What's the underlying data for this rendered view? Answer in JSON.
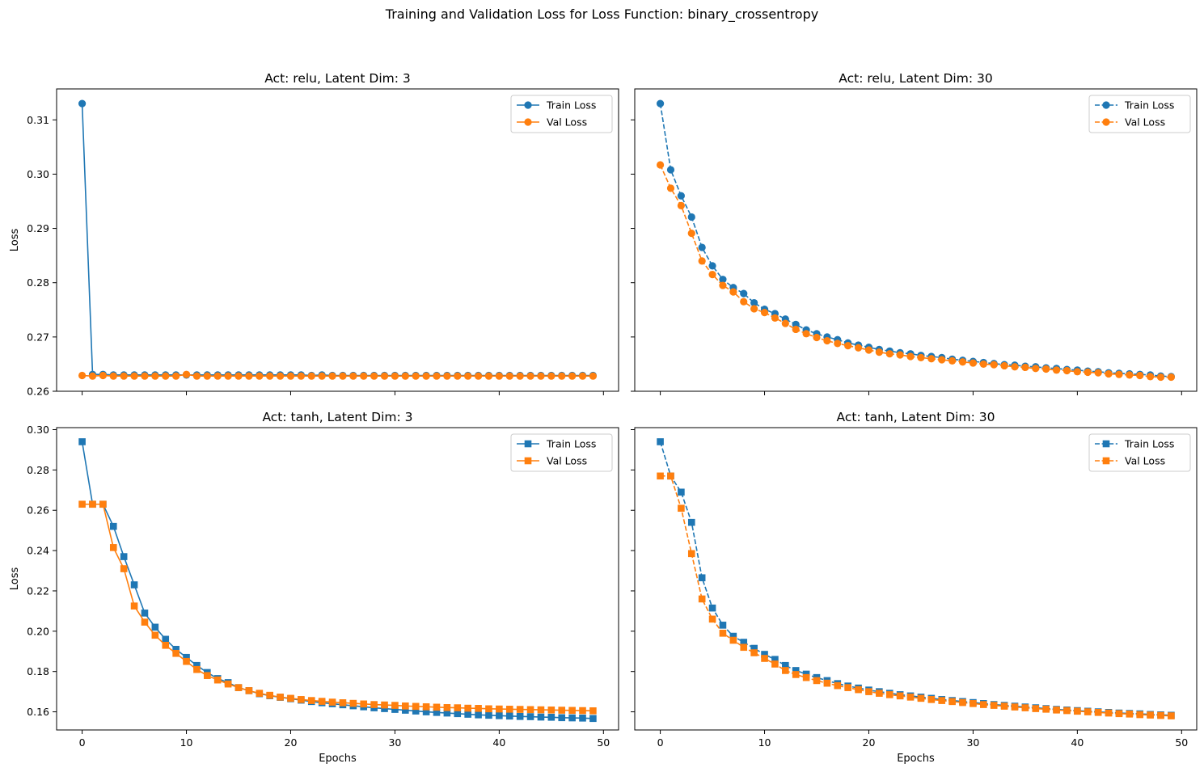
{
  "suptitle": "Training and Validation Loss for Loss Function: binary_crossentropy",
  "colors": {
    "train": "#1f77b4",
    "val": "#ff7f0e"
  },
  "chart_data": [
    {
      "type": "line",
      "title": "Act: relu, Latent Dim: 3",
      "xlabel": "",
      "ylabel": "Loss",
      "xlim": [
        -2.45,
        51.45
      ],
      "ylim": [
        0.26,
        0.3157
      ],
      "xticks": [
        0,
        10,
        20,
        30,
        40,
        50
      ],
      "yticks": [
        0.26,
        0.27,
        0.28,
        0.29,
        0.3,
        0.31
      ],
      "show_xticklabels": false,
      "show_yticklabels": true,
      "marker": "circle",
      "linestyle": "solid",
      "legend": "top-right",
      "x": [
        0,
        1,
        2,
        3,
        4,
        5,
        6,
        7,
        8,
        9,
        10,
        11,
        12,
        13,
        14,
        15,
        16,
        17,
        18,
        19,
        20,
        21,
        22,
        23,
        24,
        25,
        26,
        27,
        28,
        29,
        30,
        31,
        32,
        33,
        34,
        35,
        36,
        37,
        38,
        39,
        40,
        41,
        42,
        43,
        44,
        45,
        46,
        47,
        48,
        49
      ],
      "series": [
        {
          "name": "Train Loss",
          "values": [
            0.313,
            0.2631,
            0.2631,
            0.263,
            0.263,
            0.263,
            0.263,
            0.263,
            0.263,
            0.263,
            0.263,
            0.263,
            0.263,
            0.263,
            0.263,
            0.263,
            0.263,
            0.263,
            0.263,
            0.263,
            0.263,
            0.263,
            0.2629,
            0.263,
            0.2629,
            0.2629,
            0.2629,
            0.2629,
            0.2629,
            0.2629,
            0.2629,
            0.2629,
            0.2629,
            0.2629,
            0.2629,
            0.2629,
            0.2629,
            0.2629,
            0.2629,
            0.2629,
            0.2629,
            0.2629,
            0.2629,
            0.2629,
            0.2629,
            0.2629,
            0.2629,
            0.2629,
            0.2629,
            0.2629
          ]
        },
        {
          "name": "Val Loss",
          "values": [
            0.2629,
            0.2628,
            0.2629,
            0.2628,
            0.2628,
            0.2628,
            0.2628,
            0.2628,
            0.2628,
            0.2628,
            0.2631,
            0.2628,
            0.2628,
            0.2628,
            0.2628,
            0.2628,
            0.2628,
            0.2628,
            0.2628,
            0.2628,
            0.2628,
            0.2628,
            0.2628,
            0.2628,
            0.2628,
            0.2628,
            0.2628,
            0.2628,
            0.2628,
            0.2628,
            0.2628,
            0.2628,
            0.2628,
            0.2628,
            0.2628,
            0.2628,
            0.2628,
            0.2628,
            0.2628,
            0.2628,
            0.2628,
            0.2628,
            0.2628,
            0.2628,
            0.2628,
            0.2628,
            0.2628,
            0.2628,
            0.2628,
            0.2628
          ]
        }
      ]
    },
    {
      "type": "line",
      "title": "Act: relu, Latent Dim: 30",
      "xlabel": "",
      "ylabel": "",
      "xlim": [
        -2.45,
        51.45
      ],
      "ylim": [
        0.26,
        0.3157
      ],
      "xticks": [
        0,
        10,
        20,
        30,
        40,
        50
      ],
      "yticks": [
        0.26,
        0.27,
        0.28,
        0.29,
        0.3,
        0.31
      ],
      "show_xticklabels": false,
      "show_yticklabels": false,
      "marker": "circle",
      "linestyle": "dashed",
      "legend": "top-right",
      "x": [
        0,
        1,
        2,
        3,
        4,
        5,
        6,
        7,
        8,
        9,
        10,
        11,
        12,
        13,
        14,
        15,
        16,
        17,
        18,
        19,
        20,
        21,
        22,
        23,
        24,
        25,
        26,
        27,
        28,
        29,
        30,
        31,
        32,
        33,
        34,
        35,
        36,
        37,
        38,
        39,
        40,
        41,
        42,
        43,
        44,
        45,
        46,
        47,
        48,
        49
      ],
      "series": [
        {
          "name": "Train Loss",
          "values": [
            0.313,
            0.3008,
            0.296,
            0.2921,
            0.2865,
            0.2831,
            0.2806,
            0.2791,
            0.278,
            0.2763,
            0.2751,
            0.2743,
            0.2733,
            0.2723,
            0.2713,
            0.2706,
            0.27,
            0.2695,
            0.2689,
            0.2685,
            0.2681,
            0.2677,
            0.2674,
            0.2671,
            0.2669,
            0.2666,
            0.2664,
            0.2662,
            0.2659,
            0.2657,
            0.2655,
            0.2653,
            0.2651,
            0.2649,
            0.2648,
            0.2646,
            0.2645,
            0.2643,
            0.2642,
            0.264,
            0.2639,
            0.2637,
            0.2636,
            0.2634,
            0.2633,
            0.2632,
            0.2631,
            0.263,
            0.2628,
            0.2627
          ]
        },
        {
          "name": "Val Loss",
          "values": [
            0.3017,
            0.2974,
            0.2942,
            0.2891,
            0.284,
            0.2815,
            0.2795,
            0.2783,
            0.2765,
            0.2752,
            0.2745,
            0.2735,
            0.2725,
            0.2714,
            0.2706,
            0.2699,
            0.2693,
            0.2688,
            0.2684,
            0.268,
            0.2676,
            0.2672,
            0.2669,
            0.2667,
            0.2664,
            0.2662,
            0.266,
            0.2658,
            0.2656,
            0.2654,
            0.2652,
            0.265,
            0.2649,
            0.2647,
            0.2645,
            0.2644,
            0.2642,
            0.2641,
            0.2639,
            0.2638,
            0.2636,
            0.2635,
            0.2634,
            0.2632,
            0.2631,
            0.263,
            0.2629,
            0.2627,
            0.2626,
            0.2626
          ]
        }
      ]
    },
    {
      "type": "line",
      "title": "Act: tanh, Latent Dim: 3",
      "xlabel": "Epochs",
      "ylabel": "Loss",
      "xlim": [
        -2.45,
        51.45
      ],
      "ylim": [
        0.151,
        0.301
      ],
      "xticks": [
        0,
        10,
        20,
        30,
        40,
        50
      ],
      "yticks": [
        0.16,
        0.18,
        0.2,
        0.22,
        0.24,
        0.26,
        0.28,
        0.3
      ],
      "show_xticklabels": true,
      "show_yticklabels": true,
      "marker": "square",
      "linestyle": "solid",
      "legend": "top-right",
      "x": [
        0,
        1,
        2,
        3,
        4,
        5,
        6,
        7,
        8,
        9,
        10,
        11,
        12,
        13,
        14,
        15,
        16,
        17,
        18,
        19,
        20,
        21,
        22,
        23,
        24,
        25,
        26,
        27,
        28,
        29,
        30,
        31,
        32,
        33,
        34,
        35,
        36,
        37,
        38,
        39,
        40,
        41,
        42,
        43,
        44,
        45,
        46,
        47,
        48,
        49
      ],
      "series": [
        {
          "name": "Train Loss",
          "values": [
            0.294,
            0.263,
            0.263,
            0.252,
            0.237,
            0.223,
            0.209,
            0.202,
            0.196,
            0.191,
            0.187,
            0.183,
            0.1795,
            0.1765,
            0.1745,
            0.172,
            0.1705,
            0.169,
            0.168,
            0.1672,
            0.1665,
            0.1658,
            0.1651,
            0.1645,
            0.164,
            0.1635,
            0.163,
            0.1625,
            0.162,
            0.1616,
            0.1612,
            0.1608,
            0.1604,
            0.16,
            0.1597,
            0.1594,
            0.1591,
            0.1588,
            0.1585,
            0.1583,
            0.1581,
            0.1579,
            0.1577,
            0.1576,
            0.1574,
            0.1573,
            0.1571,
            0.157,
            0.1569,
            0.1567
          ]
        },
        {
          "name": "Val Loss",
          "values": [
            0.263,
            0.263,
            0.263,
            0.2415,
            0.231,
            0.2125,
            0.2045,
            0.198,
            0.193,
            0.189,
            0.185,
            0.181,
            0.178,
            0.1758,
            0.1738,
            0.172,
            0.1705,
            0.1692,
            0.1682,
            0.1673,
            0.1667,
            0.1661,
            0.1656,
            0.1652,
            0.1648,
            0.1645,
            0.1642,
            0.1639,
            0.1636,
            0.1634,
            0.1632,
            0.1629,
            0.1627,
            0.1625,
            0.1623,
            0.1621,
            0.162,
            0.1618,
            0.1617,
            0.1615,
            0.1614,
            0.1613,
            0.1612,
            0.1611,
            0.161,
            0.1609,
            0.1608,
            0.1607,
            0.1606,
            0.1605
          ]
        }
      ]
    },
    {
      "type": "line",
      "title": "Act: tanh, Latent Dim: 30",
      "xlabel": "Epochs",
      "ylabel": "",
      "xlim": [
        -2.45,
        51.45
      ],
      "ylim": [
        0.151,
        0.301
      ],
      "xticks": [
        0,
        10,
        20,
        30,
        40,
        50
      ],
      "yticks": [
        0.16,
        0.18,
        0.2,
        0.22,
        0.24,
        0.26,
        0.28,
        0.3
      ],
      "show_xticklabels": true,
      "show_yticklabels": false,
      "marker": "square",
      "linestyle": "dashed",
      "legend": "top-right",
      "x": [
        0,
        1,
        2,
        3,
        4,
        5,
        6,
        7,
        8,
        9,
        10,
        11,
        12,
        13,
        14,
        15,
        16,
        17,
        18,
        19,
        20,
        21,
        22,
        23,
        24,
        25,
        26,
        27,
        28,
        29,
        30,
        31,
        32,
        33,
        34,
        35,
        36,
        37,
        38,
        39,
        40,
        41,
        42,
        43,
        44,
        45,
        46,
        47,
        48,
        49
      ],
      "series": [
        {
          "name": "Train Loss",
          "values": [
            0.294,
            0.277,
            0.269,
            0.254,
            0.2265,
            0.2115,
            0.203,
            0.1975,
            0.1945,
            0.1915,
            0.1885,
            0.186,
            0.183,
            0.1805,
            0.1787,
            0.177,
            0.1755,
            0.174,
            0.1728,
            0.1718,
            0.1708,
            0.17,
            0.1692,
            0.1685,
            0.1679,
            0.1673,
            0.1667,
            0.1661,
            0.1656,
            0.1651,
            0.1646,
            0.1641,
            0.1636,
            0.1632,
            0.1628,
            0.1624,
            0.162,
            0.1616,
            0.1612,
            0.1609,
            0.1606,
            0.1603,
            0.16,
            0.1597,
            0.1594,
            0.1592,
            0.159,
            0.1587,
            0.1585,
            0.1583
          ]
        },
        {
          "name": "Val Loss",
          "values": [
            0.277,
            0.277,
            0.261,
            0.2385,
            0.216,
            0.206,
            0.199,
            0.1955,
            0.192,
            0.1893,
            0.1865,
            0.1837,
            0.1805,
            0.1785,
            0.177,
            0.1755,
            0.1742,
            0.173,
            0.172,
            0.171,
            0.17,
            0.1692,
            0.1685,
            0.1679,
            0.1673,
            0.1667,
            0.1661,
            0.1656,
            0.1651,
            0.1646,
            0.1641,
            0.1636,
            0.1632,
            0.1628,
            0.1624,
            0.162,
            0.1616,
            0.1613,
            0.1609,
            0.1606,
            0.1603,
            0.16,
            0.1597,
            0.1594,
            0.1591,
            0.1589,
            0.1586,
            0.1584,
            0.1582,
            0.158
          ]
        }
      ]
    }
  ]
}
